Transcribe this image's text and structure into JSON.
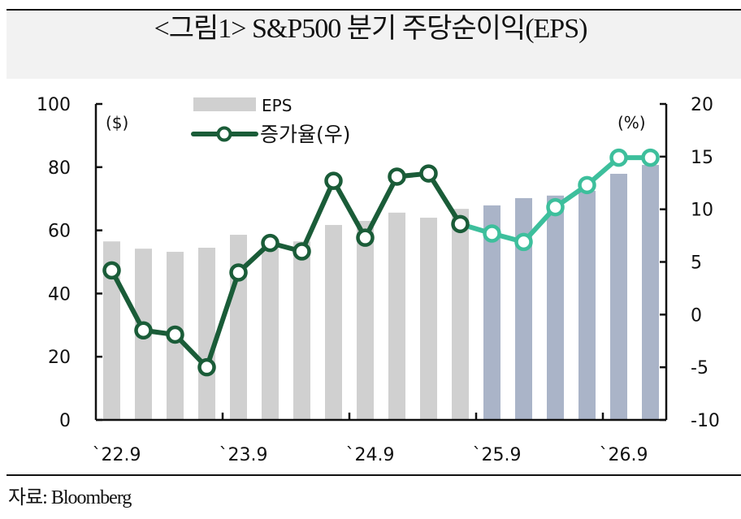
{
  "header": {
    "title": "<그림1>   S&P500 분기 주당순이익(EPS)"
  },
  "footer": {
    "source": "자료: Bloomberg"
  },
  "colors": {
    "bar_actual": "#d0d0d0",
    "bar_forecast": "#aab4c8",
    "line_actual": "#1a5c38",
    "line_forecast": "#3dbf9c",
    "axis": "#111111"
  },
  "chart_data": {
    "type": "bar+line",
    "title": "<그림1>   S&P500 분기 주당순이익(EPS)",
    "left_axis": {
      "label": "($)",
      "ylim": [
        0,
        100
      ],
      "ticks": [
        "0",
        "20",
        "40",
        "60",
        "80",
        "100"
      ]
    },
    "right_axis": {
      "label": "(%)",
      "ylim": [
        -10,
        20
      ],
      "ticks": [
        "-10",
        "-5",
        "0",
        "5",
        "10",
        "15",
        "20"
      ]
    },
    "x_tick_labels": [
      "`22.9",
      "`23.9",
      "`24.9",
      "`25.9",
      "`26.9"
    ],
    "x_label_positions": [
      0,
      4,
      8,
      12,
      16
    ],
    "forecast_start_index": 12,
    "legend": {
      "placement": "top-center",
      "entries": [
        "EPS",
        "증가율(우)"
      ]
    },
    "grid": false,
    "series": [
      {
        "name": "EPS",
        "type": "bar",
        "axis": "left",
        "values": [
          56.5,
          54.2,
          53.2,
          54.5,
          58.6,
          56.8,
          56.5,
          61.7,
          63.0,
          65.6,
          64.0,
          66.8,
          67.9,
          70.2,
          71.0,
          72.5,
          77.9,
          80.7
        ]
      },
      {
        "name": "증가율(우)",
        "type": "line",
        "axis": "right",
        "values": [
          4.2,
          -1.5,
          -1.9,
          -5.0,
          4.0,
          6.8,
          6.0,
          12.7,
          7.3,
          13.1,
          13.4,
          8.6,
          7.7,
          6.9,
          10.2,
          12.3,
          14.9,
          14.9
        ]
      }
    ]
  }
}
